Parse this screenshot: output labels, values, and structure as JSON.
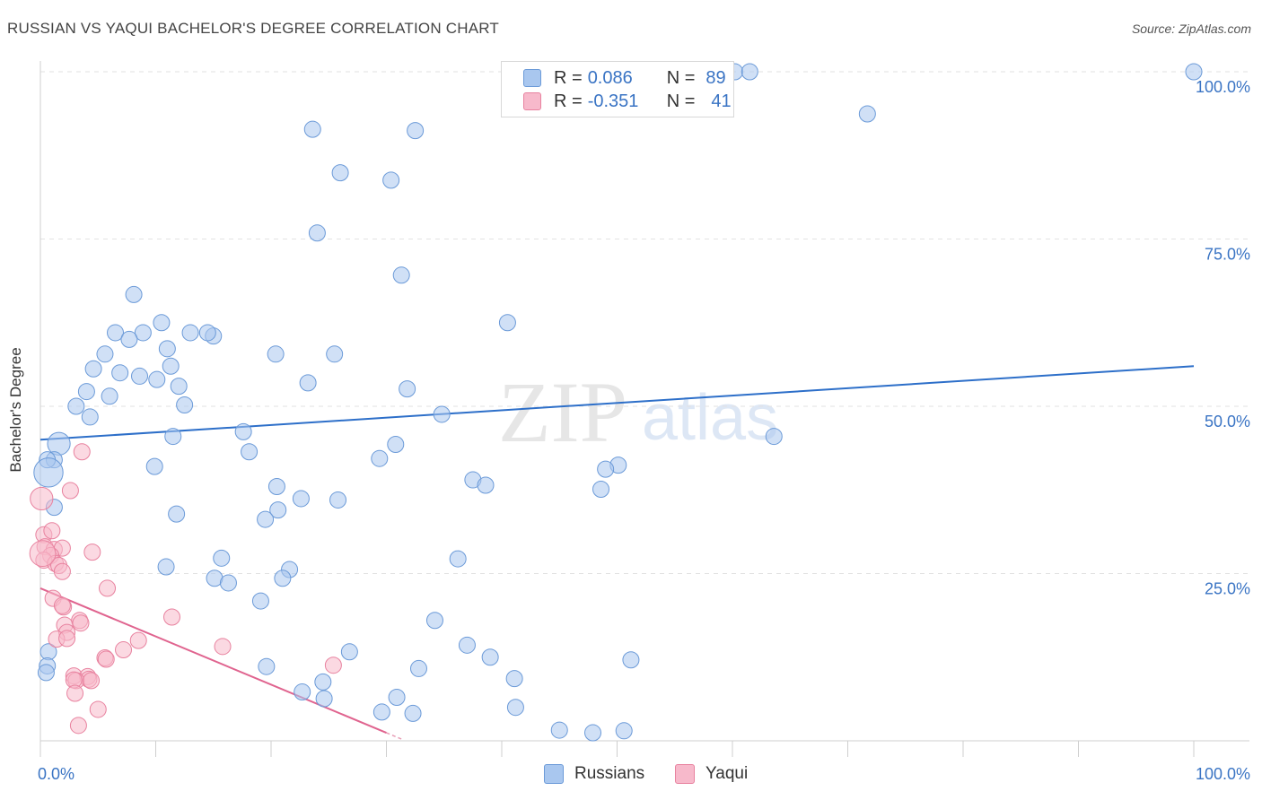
{
  "title": "RUSSIAN VS YAQUI BACHELOR'S DEGREE CORRELATION CHART",
  "source": "Source: ZipAtlas.com",
  "watermark": {
    "part1": "ZIP",
    "part2": "atlas"
  },
  "legend": {
    "rows": [
      {
        "r_label": "R =",
        "r_value": "0.086",
        "n_label": "N =",
        "n_value": "89",
        "color": "#a9c7ef"
      },
      {
        "r_label": "R =",
        "r_value": "-0.351",
        "n_label": "N =",
        "n_value": "41",
        "color": "#f7b9cb"
      }
    ]
  },
  "chart_data": {
    "type": "scatter",
    "title": "RUSSIAN VS YAQUI BACHELOR'S DEGREE CORRELATION CHART",
    "xlabel": "",
    "ylabel": "Bachelor's Degree",
    "xlim": [
      0,
      100
    ],
    "ylim": [
      0,
      100
    ],
    "x_tick_labels": [
      "0.0%",
      "100.0%"
    ],
    "y_tick_labels": [
      "25.0%",
      "50.0%",
      "75.0%",
      "100.0%"
    ],
    "y_ticks": [
      25,
      50,
      75,
      100
    ],
    "series": [
      {
        "name": "Russians",
        "color": "#a9c7ef",
        "edge": "#6b9ad8",
        "trend": {
          "x0": 0,
          "y0": 45.0,
          "x1": 100,
          "y1": 56.0,
          "color": "#2d6fc9"
        },
        "points": [
          [
            60.2,
            100.0
          ],
          [
            61.5,
            100.0
          ],
          [
            100.0,
            100.0
          ],
          [
            71.7,
            93.7
          ],
          [
            23.6,
            91.4
          ],
          [
            32.5,
            91.2
          ],
          [
            26.0,
            84.9
          ],
          [
            30.4,
            83.8
          ],
          [
            24.0,
            75.9
          ],
          [
            31.3,
            69.6
          ],
          [
            8.1,
            66.7
          ],
          [
            10.5,
            62.5
          ],
          [
            40.5,
            62.5
          ],
          [
            6.5,
            61.0
          ],
          [
            8.9,
            61.0
          ],
          [
            13.0,
            61.0
          ],
          [
            15.0,
            60.5
          ],
          [
            14.5,
            61.0
          ],
          [
            7.7,
            60.0
          ],
          [
            11.0,
            58.6
          ],
          [
            20.4,
            57.8
          ],
          [
            25.5,
            57.8
          ],
          [
            5.6,
            57.8
          ],
          [
            11.3,
            56.0
          ],
          [
            4.6,
            55.6
          ],
          [
            6.9,
            55.0
          ],
          [
            8.6,
            54.5
          ],
          [
            10.1,
            54.0
          ],
          [
            23.2,
            53.5
          ],
          [
            12.0,
            53.0
          ],
          [
            31.8,
            52.6
          ],
          [
            4.0,
            52.2
          ],
          [
            6.0,
            51.5
          ],
          [
            12.5,
            50.2
          ],
          [
            3.1,
            50.0
          ],
          [
            4.3,
            48.4
          ],
          [
            34.8,
            48.8
          ],
          [
            17.6,
            46.2
          ],
          [
            11.5,
            45.5
          ],
          [
            63.6,
            45.5
          ],
          [
            1.6,
            44.4
          ],
          [
            18.1,
            43.2
          ],
          [
            30.8,
            44.3
          ],
          [
            1.2,
            42.0
          ],
          [
            29.4,
            42.2
          ],
          [
            50.1,
            41.2
          ],
          [
            9.9,
            41.0
          ],
          [
            0.6,
            42.0
          ],
          [
            49.0,
            40.6
          ],
          [
            48.6,
            37.6
          ],
          [
            0.7,
            40.1
          ],
          [
            37.5,
            39.0
          ],
          [
            38.6,
            38.2
          ],
          [
            25.8,
            36.0
          ],
          [
            22.6,
            36.2
          ],
          [
            1.2,
            34.9
          ],
          [
            20.6,
            34.5
          ],
          [
            11.8,
            33.9
          ],
          [
            19.5,
            33.1
          ],
          [
            36.2,
            27.2
          ],
          [
            15.7,
            27.3
          ],
          [
            21.6,
            25.6
          ],
          [
            10.9,
            26.0
          ],
          [
            15.1,
            24.3
          ],
          [
            21.0,
            24.3
          ],
          [
            19.1,
            20.9
          ],
          [
            16.3,
            23.6
          ],
          [
            34.2,
            18.0
          ],
          [
            37.0,
            14.3
          ],
          [
            26.8,
            13.3
          ],
          [
            0.7,
            13.3
          ],
          [
            0.6,
            11.2
          ],
          [
            32.8,
            10.8
          ],
          [
            0.5,
            10.2
          ],
          [
            19.6,
            11.1
          ],
          [
            51.2,
            12.1
          ],
          [
            24.5,
            8.8
          ],
          [
            41.1,
            9.3
          ],
          [
            47.9,
            1.2
          ],
          [
            22.7,
            7.3
          ],
          [
            24.6,
            6.3
          ],
          [
            30.9,
            6.5
          ],
          [
            29.6,
            4.3
          ],
          [
            32.3,
            4.1
          ],
          [
            41.2,
            5.0
          ],
          [
            50.6,
            1.5
          ],
          [
            45.0,
            1.6
          ],
          [
            39.0,
            12.5
          ],
          [
            20.5,
            38.0
          ]
        ],
        "sizes": [
          1,
          1,
          1,
          1,
          1,
          1,
          1,
          1,
          1,
          1,
          1,
          1,
          1,
          1,
          1,
          1,
          1,
          1,
          1,
          1,
          1,
          1,
          1,
          1,
          1,
          1,
          1,
          1,
          1,
          1,
          1,
          1,
          1,
          1,
          1,
          1,
          1,
          1,
          1,
          1,
          1.4,
          1,
          1,
          1,
          1,
          1,
          1,
          1,
          1,
          1,
          1.8,
          1,
          1,
          1,
          1,
          1,
          1,
          1,
          1,
          1,
          1,
          1,
          1,
          1,
          1,
          1,
          1,
          1,
          1,
          1,
          1,
          1,
          1,
          1,
          1,
          1,
          1,
          1,
          1,
          1,
          1,
          1,
          1,
          1,
          1,
          1,
          1,
          1,
          1
        ]
      },
      {
        "name": "Yaqui",
        "color": "#f7b9cb",
        "edge": "#e8829f",
        "trend": {
          "x0": 0,
          "y0": 22.8,
          "x1": 30,
          "y1": 1.2,
          "color": "#e0648f"
        },
        "points": [
          [
            0.1,
            36.2
          ],
          [
            3.6,
            43.2
          ],
          [
            2.6,
            37.4
          ],
          [
            0.3,
            30.8
          ],
          [
            1.0,
            31.4
          ],
          [
            0.4,
            29.0
          ],
          [
            1.2,
            28.6
          ],
          [
            1.9,
            28.8
          ],
          [
            0.9,
            27.7
          ],
          [
            4.5,
            28.2
          ],
          [
            0.3,
            27.0
          ],
          [
            1.3,
            26.5
          ],
          [
            1.6,
            26.2
          ],
          [
            1.9,
            25.3
          ],
          [
            5.8,
            22.8
          ],
          [
            1.1,
            21.3
          ],
          [
            2.0,
            20.0
          ],
          [
            1.9,
            20.2
          ],
          [
            11.4,
            18.5
          ],
          [
            3.4,
            18.0
          ],
          [
            3.5,
            17.6
          ],
          [
            2.1,
            17.3
          ],
          [
            2.3,
            16.2
          ],
          [
            1.4,
            15.2
          ],
          [
            8.5,
            15.0
          ],
          [
            2.3,
            15.3
          ],
          [
            15.8,
            14.1
          ],
          [
            7.2,
            13.6
          ],
          [
            5.6,
            12.4
          ],
          [
            5.7,
            12.2
          ],
          [
            25.4,
            11.3
          ],
          [
            2.9,
            9.7
          ],
          [
            4.1,
            9.6
          ],
          [
            4.2,
            9.2
          ],
          [
            3.1,
            9.0
          ],
          [
            4.4,
            9.0
          ],
          [
            2.9,
            9.1
          ],
          [
            3.0,
            7.1
          ],
          [
            5.0,
            4.7
          ],
          [
            3.3,
            2.3
          ],
          [
            0.2,
            28.0
          ]
        ],
        "sizes": [
          1.4,
          1,
          1,
          1,
          1,
          1,
          1,
          1,
          1,
          1,
          1,
          1,
          1,
          1,
          1,
          1,
          1,
          1,
          1,
          1,
          1,
          1,
          1,
          1,
          1,
          1,
          1,
          1,
          1,
          1,
          1,
          1,
          1,
          1,
          1,
          1,
          1,
          1,
          1,
          1,
          1.6
        ]
      }
    ]
  }
}
